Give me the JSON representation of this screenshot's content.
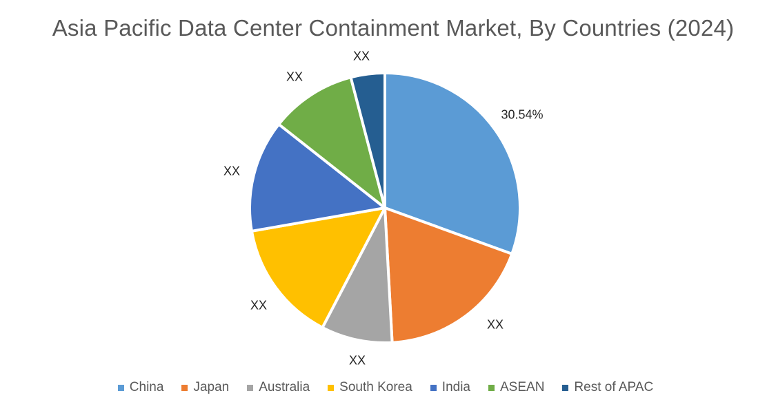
{
  "chart_data": {
    "type": "pie",
    "title": "Asia Pacific Data Center Containment Market, By Countries (2024)",
    "categories": [
      "China",
      "Japan",
      "Australia",
      "South Korea",
      "India",
      "ASEAN",
      "Rest of APAC"
    ],
    "values": [
      30.54,
      18.6,
      8.5,
      14.6,
      13.4,
      10.3,
      4.06
    ],
    "data_labels": [
      "30.54%",
      "XX",
      "XX",
      "XX",
      "XX",
      "XX",
      "XX"
    ],
    "colors": [
      "#5B9BD5",
      "#ED7D31",
      "#A5A5A5",
      "#FFC000",
      "#4472C4",
      "#70AD47",
      "#255E91"
    ],
    "start_angle_deg": 0,
    "direction": "clockwise",
    "legend_position": "bottom",
    "unit": "%"
  },
  "title": "Asia Pacific Data Center Containment Market, By Countries (2024)",
  "labels": {
    "china": "30.54%",
    "japan": "XX",
    "australia": "XX",
    "south_korea": "XX",
    "india": "XX",
    "asean": "XX",
    "rest": "XX"
  },
  "legend": [
    {
      "label": "China",
      "color": "#5B9BD5"
    },
    {
      "label": "Japan",
      "color": "#ED7D31"
    },
    {
      "label": "Australia",
      "color": "#A5A5A5"
    },
    {
      "label": "South Korea",
      "color": "#FFC000"
    },
    {
      "label": "India",
      "color": "#4472C4"
    },
    {
      "label": "ASEAN",
      "color": "#70AD47"
    },
    {
      "label": "Rest of APAC",
      "color": "#255E91"
    }
  ]
}
